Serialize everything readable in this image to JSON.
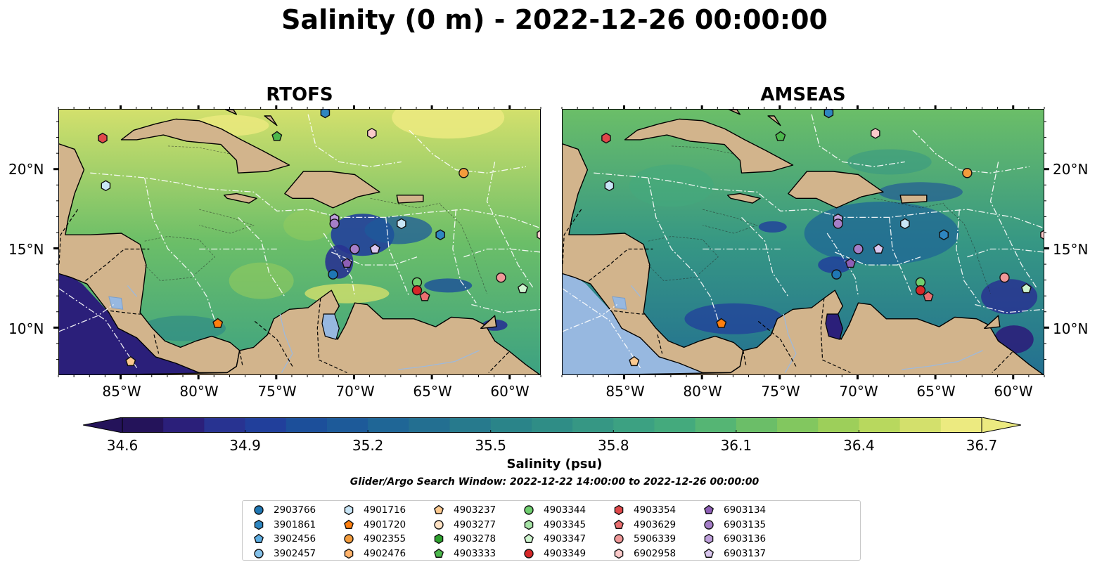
{
  "title": "Salinity (0 m) - 2022-12-26 00:00:00",
  "panels": [
    {
      "title": "RTOFS",
      "variant": "rtofs"
    },
    {
      "title": "AMSEAS",
      "variant": "amseas"
    }
  ],
  "x_ticks": [
    "85°W",
    "80°W",
    "75°W",
    "70°W",
    "65°W",
    "60°W"
  ],
  "y_ticks": [
    "20°N",
    "15°N",
    "10°N"
  ],
  "colorbar": {
    "label": "Salinity (psu)",
    "min": 34.6,
    "max": 36.7,
    "ticks": [
      "34.6",
      "34.9",
      "35.2",
      "35.5",
      "35.8",
      "36.1",
      "36.4",
      "36.7"
    ],
    "colors": [
      "#24135a",
      "#2b1f7a",
      "#283391",
      "#213f9b",
      "#1c4f9a",
      "#1d5a99",
      "#1f6696",
      "#236f91",
      "#277a8d",
      "#2a8489",
      "#2f8d86",
      "#369784",
      "#3ca182",
      "#44aa7d",
      "#55b574",
      "#6bbe68",
      "#82c75f",
      "#9dcf5a",
      "#b8d85e",
      "#d3e06c",
      "#ecea80"
    ],
    "extend": "both"
  },
  "search_window": "Glider/Argo Search Window: 2022-12-22 14:00:00 to 2022-12-26 00:00:00",
  "map_colors": {
    "land": "#d2b48c",
    "water_body": "#97b8e0",
    "coast": "#000000"
  },
  "platforms": [
    {
      "id": "2903766",
      "marker": "circle",
      "color": "#1f77b4"
    },
    {
      "id": "3901861",
      "marker": "hexagon",
      "color": "#2e86c1"
    },
    {
      "id": "3902456",
      "marker": "pentagon",
      "color": "#5dade2"
    },
    {
      "id": "3902457",
      "marker": "circle",
      "color": "#85c1e9"
    },
    {
      "id": "4901716",
      "marker": "hexagon",
      "color": "#c9e6f7"
    },
    {
      "id": "4901720",
      "marker": "pentagon",
      "color": "#ff7f0e"
    },
    {
      "id": "4902355",
      "marker": "circle",
      "color": "#f39c3c"
    },
    {
      "id": "4902476",
      "marker": "hexagon",
      "color": "#ffb36b"
    },
    {
      "id": "4903237",
      "marker": "pentagon",
      "color": "#fcc98f"
    },
    {
      "id": "4903277",
      "marker": "circle",
      "color": "#ffe2c4"
    },
    {
      "id": "4903278",
      "marker": "hexagon",
      "color": "#2ca02c"
    },
    {
      "id": "4903333",
      "marker": "pentagon",
      "color": "#4cb84c"
    },
    {
      "id": "4903344",
      "marker": "circle",
      "color": "#6fcf6f"
    },
    {
      "id": "4903345",
      "marker": "hexagon",
      "color": "#a6e3a6"
    },
    {
      "id": "4903347",
      "marker": "pentagon",
      "color": "#cff5cf"
    },
    {
      "id": "4903349",
      "marker": "circle",
      "color": "#d62728"
    },
    {
      "id": "4903354",
      "marker": "hexagon",
      "color": "#e0484a"
    },
    {
      "id": "4903629",
      "marker": "pentagon",
      "color": "#ea6f70"
    },
    {
      "id": "5906339",
      "marker": "circle",
      "color": "#f09898"
    },
    {
      "id": "6902958",
      "marker": "hexagon",
      "color": "#fbcaca"
    },
    {
      "id": "6903134",
      "marker": "pentagon",
      "color": "#8e5fb6"
    },
    {
      "id": "6903135",
      "marker": "circle",
      "color": "#a57ec8"
    },
    {
      "id": "6903136",
      "marker": "hexagon",
      "color": "#bfa0dc"
    },
    {
      "id": "6903137",
      "marker": "pentagon",
      "color": "#dac7ef"
    }
  ],
  "map_markers": [
    {
      "id": "3901861",
      "lon": -71.9,
      "lat": 23.6
    },
    {
      "id": "4903354",
      "lon": -86.2,
      "lat": 22.0
    },
    {
      "id": "4903333",
      "lon": -75.0,
      "lat": 22.1
    },
    {
      "id": "6902958",
      "lon": -68.9,
      "lat": 22.3
    },
    {
      "id": "4902355",
      "lon": -63.0,
      "lat": 19.8
    },
    {
      "id": "4901716",
      "lon": -86.0,
      "lat": 19.0
    },
    {
      "id": "6903136",
      "lon": -71.3,
      "lat": 16.9
    },
    {
      "id": "6903135",
      "lon": -71.3,
      "lat": 16.6
    },
    {
      "id": "4901716",
      "lon": -67.0,
      "lat": 16.6
    },
    {
      "id": "3901861",
      "lon": -64.5,
      "lat": 15.9
    },
    {
      "id": "6902958",
      "lon": -58.0,
      "lat": 15.9
    },
    {
      "id": "6903135",
      "lon": -70.0,
      "lat": 15.0
    },
    {
      "id": "6903137",
      "lon": -68.7,
      "lat": 15.0
    },
    {
      "id": "6903134",
      "lon": -70.5,
      "lat": 14.1
    },
    {
      "id": "2903766",
      "lon": -71.4,
      "lat": 13.4
    },
    {
      "id": "5906339",
      "lon": -60.6,
      "lat": 13.2
    },
    {
      "id": "4903344",
      "lon": -66.0,
      "lat": 12.9
    },
    {
      "id": "4903347",
      "lon": -59.2,
      "lat": 12.5
    },
    {
      "id": "4903349",
      "lon": -66.0,
      "lat": 12.4
    },
    {
      "id": "4903629",
      "lon": -65.5,
      "lat": 12.0
    },
    {
      "id": "4901720",
      "lon": -78.8,
      "lat": 10.3
    },
    {
      "id": "4903237",
      "lon": -84.4,
      "lat": 7.9
    }
  ]
}
